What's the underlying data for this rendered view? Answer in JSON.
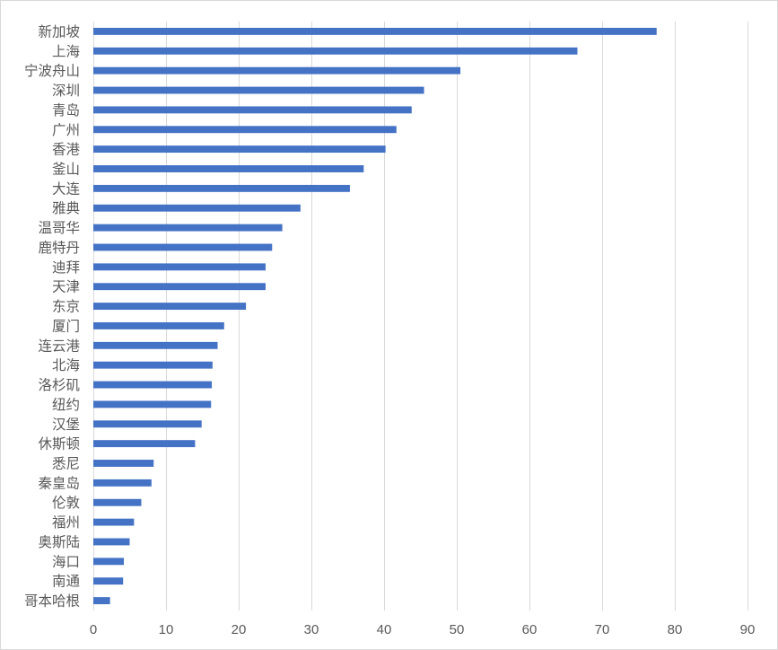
{
  "chart_data": {
    "type": "bar",
    "orientation": "horizontal",
    "title": "",
    "xlabel": "",
    "ylabel": "",
    "xlim": [
      0,
      90
    ],
    "x_ticks": [
      0,
      10,
      20,
      30,
      40,
      50,
      60,
      70,
      80,
      90
    ],
    "grid": "vertical gridlines on",
    "legend": "none",
    "bar_color": "#4472c4",
    "grid_color": "#d9d9d9",
    "label_color": "#595959",
    "categories": [
      "新加坡",
      "上海",
      "宁波舟山",
      "深圳",
      "青岛",
      "广州",
      "香港",
      "釜山",
      "大连",
      "雅典",
      "温哥华",
      "鹿特丹",
      "迪拜",
      "天津",
      "东京",
      "厦门",
      "连云港",
      "北海",
      "洛杉矶",
      "纽约",
      "汉堡",
      "休斯顿",
      "悉尼",
      "秦皇岛",
      "伦敦",
      "福州",
      "奥斯陆",
      "海口",
      "南通",
      "哥本哈根"
    ],
    "values": [
      77.5,
      66.6,
      50.5,
      45.5,
      43.8,
      41.7,
      40.2,
      37.2,
      35.3,
      28.5,
      26.0,
      24.6,
      23.7,
      23.7,
      21.0,
      18.0,
      17.1,
      16.4,
      16.3,
      16.2,
      14.9,
      14.0,
      8.3,
      8.0,
      6.6,
      5.6,
      5.0,
      4.2,
      4.1,
      2.3
    ]
  }
}
